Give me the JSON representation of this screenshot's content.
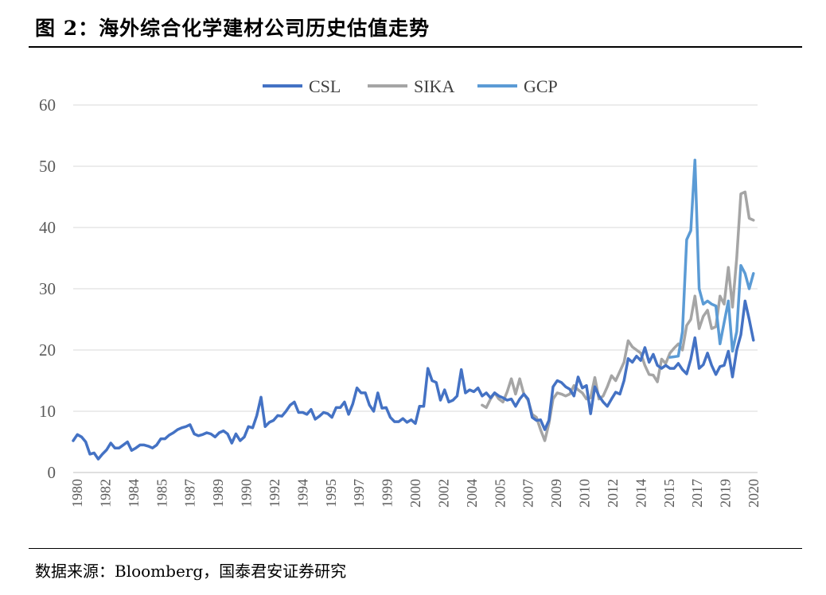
{
  "header": {
    "title": "图 2：海外综合化学建材公司历史估值走势"
  },
  "footer": {
    "source": "数据来源：Bloomberg，国泰君安证券研究"
  },
  "chart_data": {
    "type": "line",
    "title": "",
    "xlabel": "",
    "ylabel": "",
    "ylim": [
      0,
      60
    ],
    "xlim": [
      1980.0,
      2021.0
    ],
    "yticks": [
      0,
      10,
      20,
      30,
      40,
      50,
      60
    ],
    "xtick_labels": [
      "1980",
      "1982",
      "1984",
      "1985",
      "1987",
      "1989",
      "1990",
      "1992",
      "1994",
      "1995",
      "1997",
      "1999",
      "2000",
      "2002",
      "2004",
      "2005",
      "2007",
      "2009",
      "2010",
      "2012",
      "2014",
      "2015",
      "2017",
      "2019",
      "2020"
    ],
    "grid": true,
    "legend_position": "top-center",
    "series": [
      {
        "name": "CSL",
        "color": "#4472C4",
        "points": [
          [
            1980.0,
            5.2
          ],
          [
            1980.25,
            6.2
          ],
          [
            1980.5,
            5.8
          ],
          [
            1980.75,
            5.0
          ],
          [
            1981.0,
            3.0
          ],
          [
            1981.25,
            3.2
          ],
          [
            1981.5,
            2.2
          ],
          [
            1981.75,
            3.0
          ],
          [
            1982.0,
            3.7
          ],
          [
            1982.25,
            4.8
          ],
          [
            1982.5,
            4.0
          ],
          [
            1982.75,
            4.0
          ],
          [
            1983.0,
            4.5
          ],
          [
            1983.25,
            5.0
          ],
          [
            1983.5,
            3.6
          ],
          [
            1983.75,
            4.0
          ],
          [
            1984.0,
            4.5
          ],
          [
            1984.25,
            4.5
          ],
          [
            1984.5,
            4.3
          ],
          [
            1984.75,
            4.0
          ],
          [
            1985.0,
            4.5
          ],
          [
            1985.25,
            5.5
          ],
          [
            1985.5,
            5.5
          ],
          [
            1985.75,
            6.1
          ],
          [
            1986.0,
            6.5
          ],
          [
            1986.25,
            7.0
          ],
          [
            1986.5,
            7.3
          ],
          [
            1986.75,
            7.5
          ],
          [
            1987.0,
            7.8
          ],
          [
            1987.25,
            6.3
          ],
          [
            1987.5,
            6.0
          ],
          [
            1987.75,
            6.2
          ],
          [
            1988.0,
            6.5
          ],
          [
            1988.25,
            6.3
          ],
          [
            1988.5,
            5.8
          ],
          [
            1988.75,
            6.5
          ],
          [
            1989.0,
            6.8
          ],
          [
            1989.25,
            6.3
          ],
          [
            1989.5,
            4.8
          ],
          [
            1989.75,
            6.3
          ],
          [
            1990.0,
            5.2
          ],
          [
            1990.25,
            5.8
          ],
          [
            1990.5,
            7.5
          ],
          [
            1990.75,
            7.3
          ],
          [
            1991.0,
            9.3
          ],
          [
            1991.25,
            12.3
          ],
          [
            1991.5,
            7.5
          ],
          [
            1991.75,
            8.2
          ],
          [
            1992.0,
            8.5
          ],
          [
            1992.25,
            9.3
          ],
          [
            1992.5,
            9.2
          ],
          [
            1992.75,
            10.0
          ],
          [
            1993.0,
            11.0
          ],
          [
            1993.25,
            11.5
          ],
          [
            1993.5,
            9.8
          ],
          [
            1993.75,
            9.8
          ],
          [
            1994.0,
            9.5
          ],
          [
            1994.25,
            10.3
          ],
          [
            1994.5,
            8.7
          ],
          [
            1994.75,
            9.2
          ],
          [
            1995.0,
            9.8
          ],
          [
            1995.25,
            9.6
          ],
          [
            1995.5,
            9.0
          ],
          [
            1995.75,
            10.6
          ],
          [
            1996.0,
            10.6
          ],
          [
            1996.25,
            11.5
          ],
          [
            1996.5,
            9.5
          ],
          [
            1996.75,
            11.2
          ],
          [
            1997.0,
            13.8
          ],
          [
            1997.25,
            13.0
          ],
          [
            1997.5,
            13.0
          ],
          [
            1997.75,
            11.0
          ],
          [
            1998.0,
            10.0
          ],
          [
            1998.25,
            13.0
          ],
          [
            1998.5,
            10.5
          ],
          [
            1998.75,
            10.6
          ],
          [
            1999.0,
            9.0
          ],
          [
            1999.25,
            8.3
          ],
          [
            1999.5,
            8.3
          ],
          [
            1999.75,
            8.8
          ],
          [
            2000.0,
            8.2
          ],
          [
            2000.25,
            8.6
          ],
          [
            2000.5,
            8.0
          ],
          [
            2000.75,
            10.8
          ],
          [
            2001.0,
            10.8
          ],
          [
            2001.25,
            17.0
          ],
          [
            2001.5,
            15.0
          ],
          [
            2001.75,
            14.7
          ],
          [
            2002.0,
            11.8
          ],
          [
            2002.25,
            13.5
          ],
          [
            2002.5,
            11.5
          ],
          [
            2002.75,
            11.8
          ],
          [
            2003.0,
            12.5
          ],
          [
            2003.25,
            16.8
          ],
          [
            2003.5,
            13.0
          ],
          [
            2003.75,
            13.5
          ],
          [
            2004.0,
            13.2
          ],
          [
            2004.25,
            13.8
          ],
          [
            2004.5,
            12.5
          ],
          [
            2004.75,
            13.0
          ],
          [
            2005.0,
            12.2
          ],
          [
            2005.25,
            13.0
          ],
          [
            2005.5,
            12.5
          ],
          [
            2005.75,
            12.2
          ],
          [
            2006.0,
            11.8
          ],
          [
            2006.25,
            12.0
          ],
          [
            2006.5,
            10.8
          ],
          [
            2006.75,
            12.0
          ],
          [
            2007.0,
            12.8
          ],
          [
            2007.25,
            12.0
          ],
          [
            2007.5,
            9.0
          ],
          [
            2007.75,
            8.5
          ],
          [
            2008.0,
            8.6
          ],
          [
            2008.25,
            7.0
          ],
          [
            2008.5,
            8.5
          ],
          [
            2008.75,
            14.0
          ],
          [
            2009.0,
            15.0
          ],
          [
            2009.25,
            14.7
          ],
          [
            2009.5,
            14.0
          ],
          [
            2009.75,
            13.6
          ],
          [
            2010.0,
            12.5
          ],
          [
            2010.25,
            15.6
          ],
          [
            2010.5,
            13.8
          ],
          [
            2010.75,
            14.2
          ],
          [
            2011.0,
            9.6
          ],
          [
            2011.25,
            14.0
          ],
          [
            2011.5,
            12.5
          ],
          [
            2011.75,
            11.5
          ],
          [
            2012.0,
            10.8
          ],
          [
            2012.25,
            12.0
          ],
          [
            2012.5,
            13.1
          ],
          [
            2012.75,
            12.8
          ],
          [
            2013.0,
            15.0
          ],
          [
            2013.25,
            18.6
          ],
          [
            2013.5,
            18.0
          ],
          [
            2013.75,
            19.0
          ],
          [
            2014.0,
            18.3
          ],
          [
            2014.25,
            20.4
          ],
          [
            2014.5,
            18.0
          ],
          [
            2014.75,
            19.3
          ],
          [
            2015.0,
            17.5
          ],
          [
            2015.25,
            17.0
          ],
          [
            2015.5,
            17.5
          ],
          [
            2015.75,
            17.0
          ],
          [
            2016.0,
            17.0
          ],
          [
            2016.25,
            17.8
          ],
          [
            2016.5,
            16.8
          ],
          [
            2016.75,
            16.1
          ],
          [
            2017.0,
            18.5
          ],
          [
            2017.25,
            22.0
          ],
          [
            2017.5,
            17.0
          ],
          [
            2017.75,
            17.6
          ],
          [
            2018.0,
            19.5
          ],
          [
            2018.25,
            17.5
          ],
          [
            2018.5,
            16.0
          ],
          [
            2018.75,
            17.3
          ],
          [
            2019.0,
            17.5
          ],
          [
            2019.25,
            19.8
          ],
          [
            2019.5,
            15.6
          ],
          [
            2019.75,
            20.0
          ],
          [
            2020.0,
            22.5
          ],
          [
            2020.25,
            28.0
          ],
          [
            2020.5,
            25.0
          ],
          [
            2020.75,
            21.6
          ]
        ]
      },
      {
        "name": "SIKA",
        "color": "#A5A5A5",
        "points": [
          [
            2004.5,
            11.0
          ],
          [
            2004.75,
            10.6
          ],
          [
            2005.0,
            12.0
          ],
          [
            2005.25,
            13.0
          ],
          [
            2005.5,
            12.0
          ],
          [
            2005.75,
            11.5
          ],
          [
            2006.0,
            13.2
          ],
          [
            2006.25,
            15.3
          ],
          [
            2006.5,
            12.8
          ],
          [
            2006.75,
            15.3
          ],
          [
            2007.0,
            12.8
          ],
          [
            2007.25,
            11.8
          ],
          [
            2007.5,
            9.5
          ],
          [
            2007.75,
            9.0
          ],
          [
            2008.0,
            7.0
          ],
          [
            2008.25,
            5.2
          ],
          [
            2008.5,
            8.0
          ],
          [
            2008.75,
            12.0
          ],
          [
            2009.0,
            13.0
          ],
          [
            2009.25,
            12.8
          ],
          [
            2009.5,
            12.5
          ],
          [
            2009.75,
            12.8
          ],
          [
            2010.0,
            14.2
          ],
          [
            2010.25,
            13.5
          ],
          [
            2010.5,
            13.0
          ],
          [
            2010.75,
            12.0
          ],
          [
            2011.0,
            12.2
          ],
          [
            2011.25,
            15.5
          ],
          [
            2011.5,
            12.0
          ],
          [
            2011.75,
            12.5
          ],
          [
            2012.0,
            14.0
          ],
          [
            2012.25,
            15.8
          ],
          [
            2012.5,
            15.0
          ],
          [
            2012.75,
            16.5
          ],
          [
            2013.0,
            18.0
          ],
          [
            2013.25,
            21.5
          ],
          [
            2013.5,
            20.5
          ],
          [
            2013.75,
            20.0
          ],
          [
            2014.0,
            19.5
          ],
          [
            2014.25,
            17.5
          ],
          [
            2014.5,
            16.0
          ],
          [
            2014.75,
            15.9
          ],
          [
            2015.0,
            14.8
          ],
          [
            2015.25,
            18.5
          ],
          [
            2015.5,
            17.8
          ],
          [
            2015.75,
            19.5
          ],
          [
            2016.0,
            20.3
          ],
          [
            2016.25,
            21.0
          ],
          [
            2016.5,
            20.0
          ],
          [
            2016.75,
            24.0
          ],
          [
            2017.0,
            25.0
          ],
          [
            2017.25,
            28.8
          ],
          [
            2017.5,
            23.5
          ],
          [
            2017.75,
            25.5
          ],
          [
            2018.0,
            26.5
          ],
          [
            2018.25,
            23.5
          ],
          [
            2018.5,
            23.8
          ],
          [
            2018.75,
            28.8
          ],
          [
            2019.0,
            27.5
          ],
          [
            2019.25,
            33.5
          ],
          [
            2019.5,
            27.0
          ],
          [
            2019.75,
            35.0
          ],
          [
            2020.0,
            45.5
          ],
          [
            2020.25,
            45.8
          ],
          [
            2020.5,
            41.5
          ],
          [
            2020.75,
            41.2
          ]
        ]
      },
      {
        "name": "GCP",
        "color": "#5B9BD5",
        "points": [
          [
            2015.75,
            18.8
          ],
          [
            2016.0,
            18.9
          ],
          [
            2016.25,
            19.0
          ],
          [
            2016.5,
            23.0
          ],
          [
            2016.75,
            38.0
          ],
          [
            2017.0,
            39.5
          ],
          [
            2017.25,
            51.0
          ],
          [
            2017.5,
            30.0
          ],
          [
            2017.75,
            27.5
          ],
          [
            2018.0,
            28.0
          ],
          [
            2018.25,
            27.5
          ],
          [
            2018.5,
            27.2
          ],
          [
            2018.75,
            21.0
          ],
          [
            2019.0,
            24.5
          ],
          [
            2019.25,
            28.0
          ],
          [
            2019.5,
            19.8
          ],
          [
            2019.75,
            23.0
          ],
          [
            2020.0,
            33.8
          ],
          [
            2020.25,
            32.5
          ],
          [
            2020.5,
            30.0
          ],
          [
            2020.75,
            32.5
          ]
        ]
      }
    ]
  }
}
